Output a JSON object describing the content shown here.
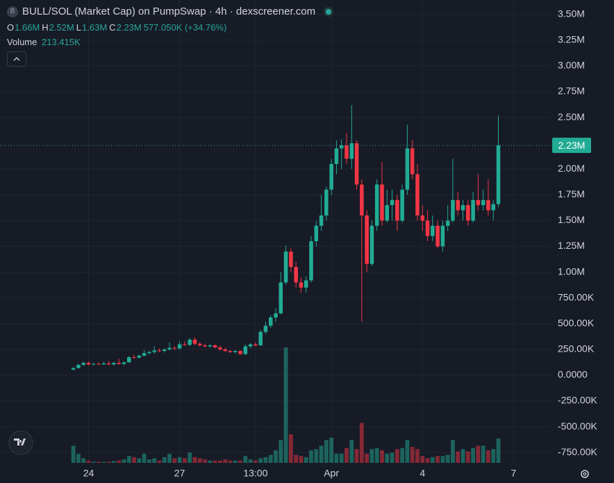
{
  "chart_data": {
    "type": "candlestick",
    "title": "BULL/SOL (Market Cap) on PumpSwap · 4h · dexscreener.com",
    "ohlc_legend": [
      {
        "key": "O",
        "value": "1.66M"
      },
      {
        "key": "H",
        "value": "2.52M"
      },
      {
        "key": "L",
        "value": "1.63M"
      },
      {
        "key": "C",
        "value": "2.23M"
      }
    ],
    "change": "577.050K (+34.76%)",
    "volume_label": "Volume",
    "volume_value": "213.415K",
    "price_label": "2.23M",
    "up_color": "#22ab94",
    "down_color": "#f23645",
    "categories": [
      null,
      null,
      null,
      null,
      null,
      null,
      null,
      null,
      null,
      null,
      null,
      null,
      null,
      null,
      null,
      null,
      null,
      "24",
      null,
      null,
      null,
      null,
      null,
      null,
      null,
      null,
      null,
      null,
      null,
      null,
      null,
      null,
      null,
      null,
      null,
      "27",
      null,
      null,
      null,
      null,
      null,
      null,
      null,
      null,
      null,
      null,
      null,
      null,
      null,
      null,
      "13:00",
      null,
      null,
      null,
      null,
      null,
      null,
      null,
      null,
      null,
      null,
      null,
      null,
      null,
      null,
      "Apr",
      null,
      null,
      null,
      null,
      null,
      null,
      null,
      null,
      null,
      null,
      null,
      null,
      null,
      null,
      null,
      null,
      null,
      "4",
      null,
      null,
      null,
      null,
      null,
      null,
      null,
      null,
      null,
      null,
      null,
      null,
      null,
      null,
      null,
      null,
      null,
      "7",
      null,
      null,
      null,
      null,
      null,
      null,
      null
    ],
    "open": [
      null,
      null,
      null,
      null,
      null,
      null,
      null,
      null,
      null,
      null,
      null,
      null,
      null,
      null,
      55000,
      70000,
      100000,
      120000,
      105000,
      110000,
      105000,
      115000,
      105000,
      120000,
      110000,
      125000,
      175000,
      170000,
      190000,
      215000,
      225000,
      240000,
      235000,
      250000,
      265000,
      260000,
      300000,
      295000,
      345000,
      305000,
      290000,
      280000,
      290000,
      270000,
      250000,
      235000,
      225000,
      235000,
      205000,
      280000,
      300000,
      290000,
      420000,
      480000,
      560000,
      600000,
      900000,
      1200000,
      1050000,
      900000,
      850000,
      920000,
      1300000,
      1450000,
      1550000,
      1800000,
      2050000,
      2200000,
      2230000,
      2100000,
      2250000,
      1850000,
      1550000,
      1080000,
      1450000,
      1850000,
      1500000,
      1650000,
      1700000,
      1500000,
      1800000,
      2200000,
      1950000,
      1550000,
      1500000,
      1350000,
      1450000,
      1250000,
      1450000,
      1500000,
      1700000,
      1600000,
      1650000,
      1500000,
      1700000,
      1650000,
      1700000,
      1600000,
      1660000,
      null,
      null,
      null,
      null,
      null,
      null,
      null,
      null,
      null,
      null
    ],
    "high": [
      null,
      null,
      null,
      null,
      null,
      null,
      null,
      null,
      null,
      null,
      null,
      null,
      null,
      null,
      75000,
      110000,
      130000,
      135000,
      120000,
      125000,
      130000,
      140000,
      125000,
      160000,
      130000,
      185000,
      200000,
      200000,
      245000,
      235000,
      280000,
      260000,
      260000,
      320000,
      280000,
      330000,
      330000,
      360000,
      370000,
      320000,
      305000,
      300000,
      300000,
      285000,
      265000,
      245000,
      245000,
      240000,
      300000,
      310000,
      320000,
      440000,
      520000,
      580000,
      650000,
      1000000,
      1260000,
      1230000,
      1100000,
      950000,
      960000,
      1350000,
      1500000,
      1750000,
      1830000,
      2100000,
      2280000,
      2290000,
      2350000,
      2620000,
      2280000,
      1900000,
      1600000,
      1500000,
      1900000,
      2070000,
      1800000,
      1800000,
      1750000,
      1850000,
      2430000,
      2280000,
      2050000,
      1650000,
      1600000,
      1550000,
      1500000,
      1500000,
      1650000,
      2100000,
      1780000,
      1700000,
      1700000,
      1780000,
      1950000,
      1800000,
      1900000,
      1700000,
      2520000,
      null,
      null,
      null,
      null,
      null,
      null,
      null,
      null,
      null,
      null
    ],
    "low": [
      null,
      null,
      null,
      null,
      null,
      null,
      null,
      null,
      null,
      null,
      null,
      null,
      null,
      null,
      45000,
      65000,
      90000,
      95000,
      95000,
      100000,
      100000,
      100000,
      95000,
      100000,
      95000,
      120000,
      160000,
      165000,
      180000,
      200000,
      210000,
      225000,
      220000,
      240000,
      245000,
      250000,
      285000,
      280000,
      290000,
      280000,
      270000,
      265000,
      260000,
      240000,
      225000,
      215000,
      210000,
      195000,
      195000,
      260000,
      280000,
      285000,
      400000,
      460000,
      520000,
      590000,
      880000,
      1000000,
      850000,
      800000,
      800000,
      900000,
      1250000,
      1400000,
      1500000,
      1750000,
      1950000,
      2000000,
      2050000,
      2000000,
      1800000,
      520000,
      1000000,
      1060000,
      1400000,
      1450000,
      1480000,
      1500000,
      1400000,
      1480000,
      1750000,
      1900000,
      1500000,
      1400000,
      1300000,
      1300000,
      1230000,
      1200000,
      1400000,
      1480000,
      1550000,
      1500000,
      1450000,
      1480000,
      1600000,
      1600000,
      1550000,
      1500000,
      1630000,
      null,
      null,
      null,
      null,
      null,
      null,
      null,
      null,
      null,
      null
    ],
    "close": [
      null,
      null,
      null,
      null,
      null,
      null,
      null,
      null,
      null,
      null,
      null,
      null,
      null,
      null,
      70000,
      100000,
      120000,
      105000,
      110000,
      105000,
      115000,
      105000,
      120000,
      110000,
      125000,
      175000,
      170000,
      190000,
      215000,
      225000,
      240000,
      235000,
      250000,
      265000,
      260000,
      300000,
      295000,
      345000,
      305000,
      290000,
      280000,
      290000,
      270000,
      250000,
      235000,
      225000,
      235000,
      205000,
      280000,
      300000,
      290000,
      420000,
      480000,
      560000,
      600000,
      900000,
      1200000,
      1050000,
      900000,
      850000,
      920000,
      1300000,
      1450000,
      1550000,
      1800000,
      2050000,
      2200000,
      2230000,
      2100000,
      2250000,
      1850000,
      1550000,
      1080000,
      1450000,
      1850000,
      1500000,
      1650000,
      1700000,
      1500000,
      1800000,
      2200000,
      1950000,
      1550000,
      1500000,
      1350000,
      1450000,
      1250000,
      1450000,
      1500000,
      1700000,
      1600000,
      1650000,
      1500000,
      1700000,
      1650000,
      1700000,
      1600000,
      1660000,
      2230000,
      null,
      null,
      null,
      null,
      null,
      null,
      null,
      null,
      null,
      null
    ],
    "volume": [
      null,
      null,
      null,
      null,
      null,
      null,
      null,
      null,
      null,
      null,
      null,
      null,
      null,
      null,
      150000,
      80000,
      40000,
      20000,
      10000,
      10000,
      10000,
      10000,
      15000,
      20000,
      30000,
      60000,
      50000,
      40000,
      80000,
      30000,
      40000,
      20000,
      50000,
      80000,
      40000,
      50000,
      40000,
      90000,
      50000,
      40000,
      30000,
      20000,
      20000,
      20000,
      30000,
      20000,
      20000,
      20000,
      60000,
      30000,
      20000,
      40000,
      50000,
      70000,
      110000,
      200000,
      1010000,
      250000,
      70000,
      60000,
      50000,
      110000,
      120000,
      150000,
      200000,
      220000,
      80000,
      80000,
      130000,
      200000,
      120000,
      350000,
      80000,
      120000,
      130000,
      110000,
      80000,
      90000,
      120000,
      130000,
      200000,
      140000,
      120000,
      60000,
      40000,
      50000,
      60000,
      60000,
      70000,
      200000,
      100000,
      120000,
      100000,
      130000,
      150000,
      150000,
      110000,
      120000,
      213415,
      null,
      null,
      null,
      null,
      null,
      null,
      null,
      null,
      null,
      null
    ],
    "ylim": [
      -850000,
      3640000
    ],
    "yticks": [
      {
        "value": 3500000,
        "label": "3.50M"
      },
      {
        "value": 3250000,
        "label": "3.25M"
      },
      {
        "value": 3000000,
        "label": "3.00M"
      },
      {
        "value": 2750000,
        "label": "2.75M"
      },
      {
        "value": 2500000,
        "label": "2.50M"
      },
      {
        "value": 2000000,
        "label": "2.00M"
      },
      {
        "value": 1750000,
        "label": "1.75M"
      },
      {
        "value": 1500000,
        "label": "1.50M"
      },
      {
        "value": 1250000,
        "label": "1.25M"
      },
      {
        "value": 1000000,
        "label": "1.00M"
      },
      {
        "value": 750000,
        "label": "750.00K"
      },
      {
        "value": 500000,
        "label": "500.00K"
      },
      {
        "value": 250000,
        "label": "250.00K"
      },
      {
        "value": 0,
        "label": "0.0000"
      },
      {
        "value": -250000,
        "label": "-250.00K"
      },
      {
        "value": -500000,
        "label": "-500.00K"
      },
      {
        "value": -750000,
        "label": "-750.00K"
      }
    ],
    "grid": true
  }
}
